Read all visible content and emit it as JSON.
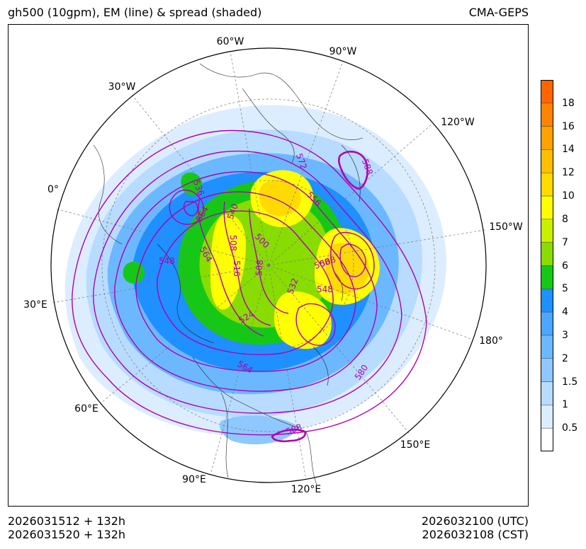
{
  "header": {
    "title_left": "gh500 (10gpm), EM (line) & spread (shaded)",
    "title_right": "CMA-GEPS"
  },
  "map": {
    "longitude_labels": [
      "60°W",
      "90°W",
      "30°W",
      "120°W",
      "0°",
      "150°W",
      "30°E",
      "180°",
      "60°E",
      "150°E",
      "90°E",
      "120°E"
    ],
    "contour_labels": [
      "536",
      "564",
      "540",
      "572",
      "556",
      "588",
      "508",
      "500",
      "548",
      "508",
      "516",
      "508",
      "564",
      "508",
      "532",
      "548",
      "524",
      "564",
      "580",
      "588"
    ],
    "line_color": "#b000b0"
  },
  "colorbar": {
    "labels": [
      "18",
      "16",
      "14",
      "12",
      "10",
      "8",
      "7",
      "6",
      "5",
      "4",
      "3",
      "2",
      "1.5",
      "1",
      "0.5"
    ],
    "colors": [
      "#ff6600",
      "#ff8400",
      "#ffa200",
      "#ffbe00",
      "#ffda00",
      "#ffff00",
      "#c8f000",
      "#88dc00",
      "#16c816",
      "#1e90ff",
      "#4ba6ff",
      "#6cb8ff",
      "#8ec8ff",
      "#b8dcff",
      "#dcedff",
      "#ffffff"
    ]
  },
  "footer": {
    "init_utc": "2026031512 + 132h",
    "init_cst": "2026031520 + 132h",
    "valid_utc": "2026032100 (UTC)",
    "valid_cst": "2026032108 (CST)"
  }
}
